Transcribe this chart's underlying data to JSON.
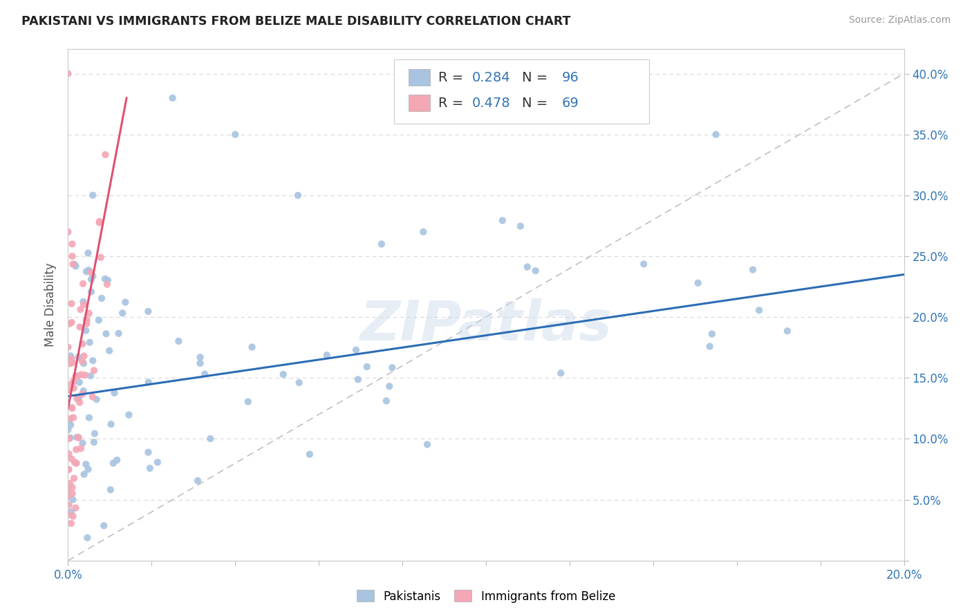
{
  "title": "PAKISTANI VS IMMIGRANTS FROM BELIZE MALE DISABILITY CORRELATION CHART",
  "source": "Source: ZipAtlas.com",
  "ylabel": "Male Disability",
  "xlim": [
    0.0,
    0.2
  ],
  "ylim": [
    0.0,
    0.42
  ],
  "xtick_vals": [
    0.0,
    0.02,
    0.04,
    0.06,
    0.08,
    0.1,
    0.12,
    0.14,
    0.16,
    0.18,
    0.2
  ],
  "ytick_vals": [
    0.0,
    0.05,
    0.1,
    0.15,
    0.2,
    0.25,
    0.3,
    0.35,
    0.4
  ],
  "ytick_labels": [
    "",
    "5.0%",
    "10.0%",
    "15.0%",
    "20.0%",
    "25.0%",
    "30.0%",
    "35.0%",
    "40.0%"
  ],
  "blue_color": "#a8c4e0",
  "pink_color": "#f4a7b5",
  "blue_line_color": "#2b6cb5",
  "pink_line_color": "#e05070",
  "dashed_line_color": "#c0c0c0",
  "R_blue": 0.284,
  "N_blue": 96,
  "R_pink": 0.478,
  "N_pink": 69,
  "watermark": "ZIPatlas",
  "legend_label_blue": "Pakistanis",
  "legend_label_pink": "Immigrants from Belize"
}
